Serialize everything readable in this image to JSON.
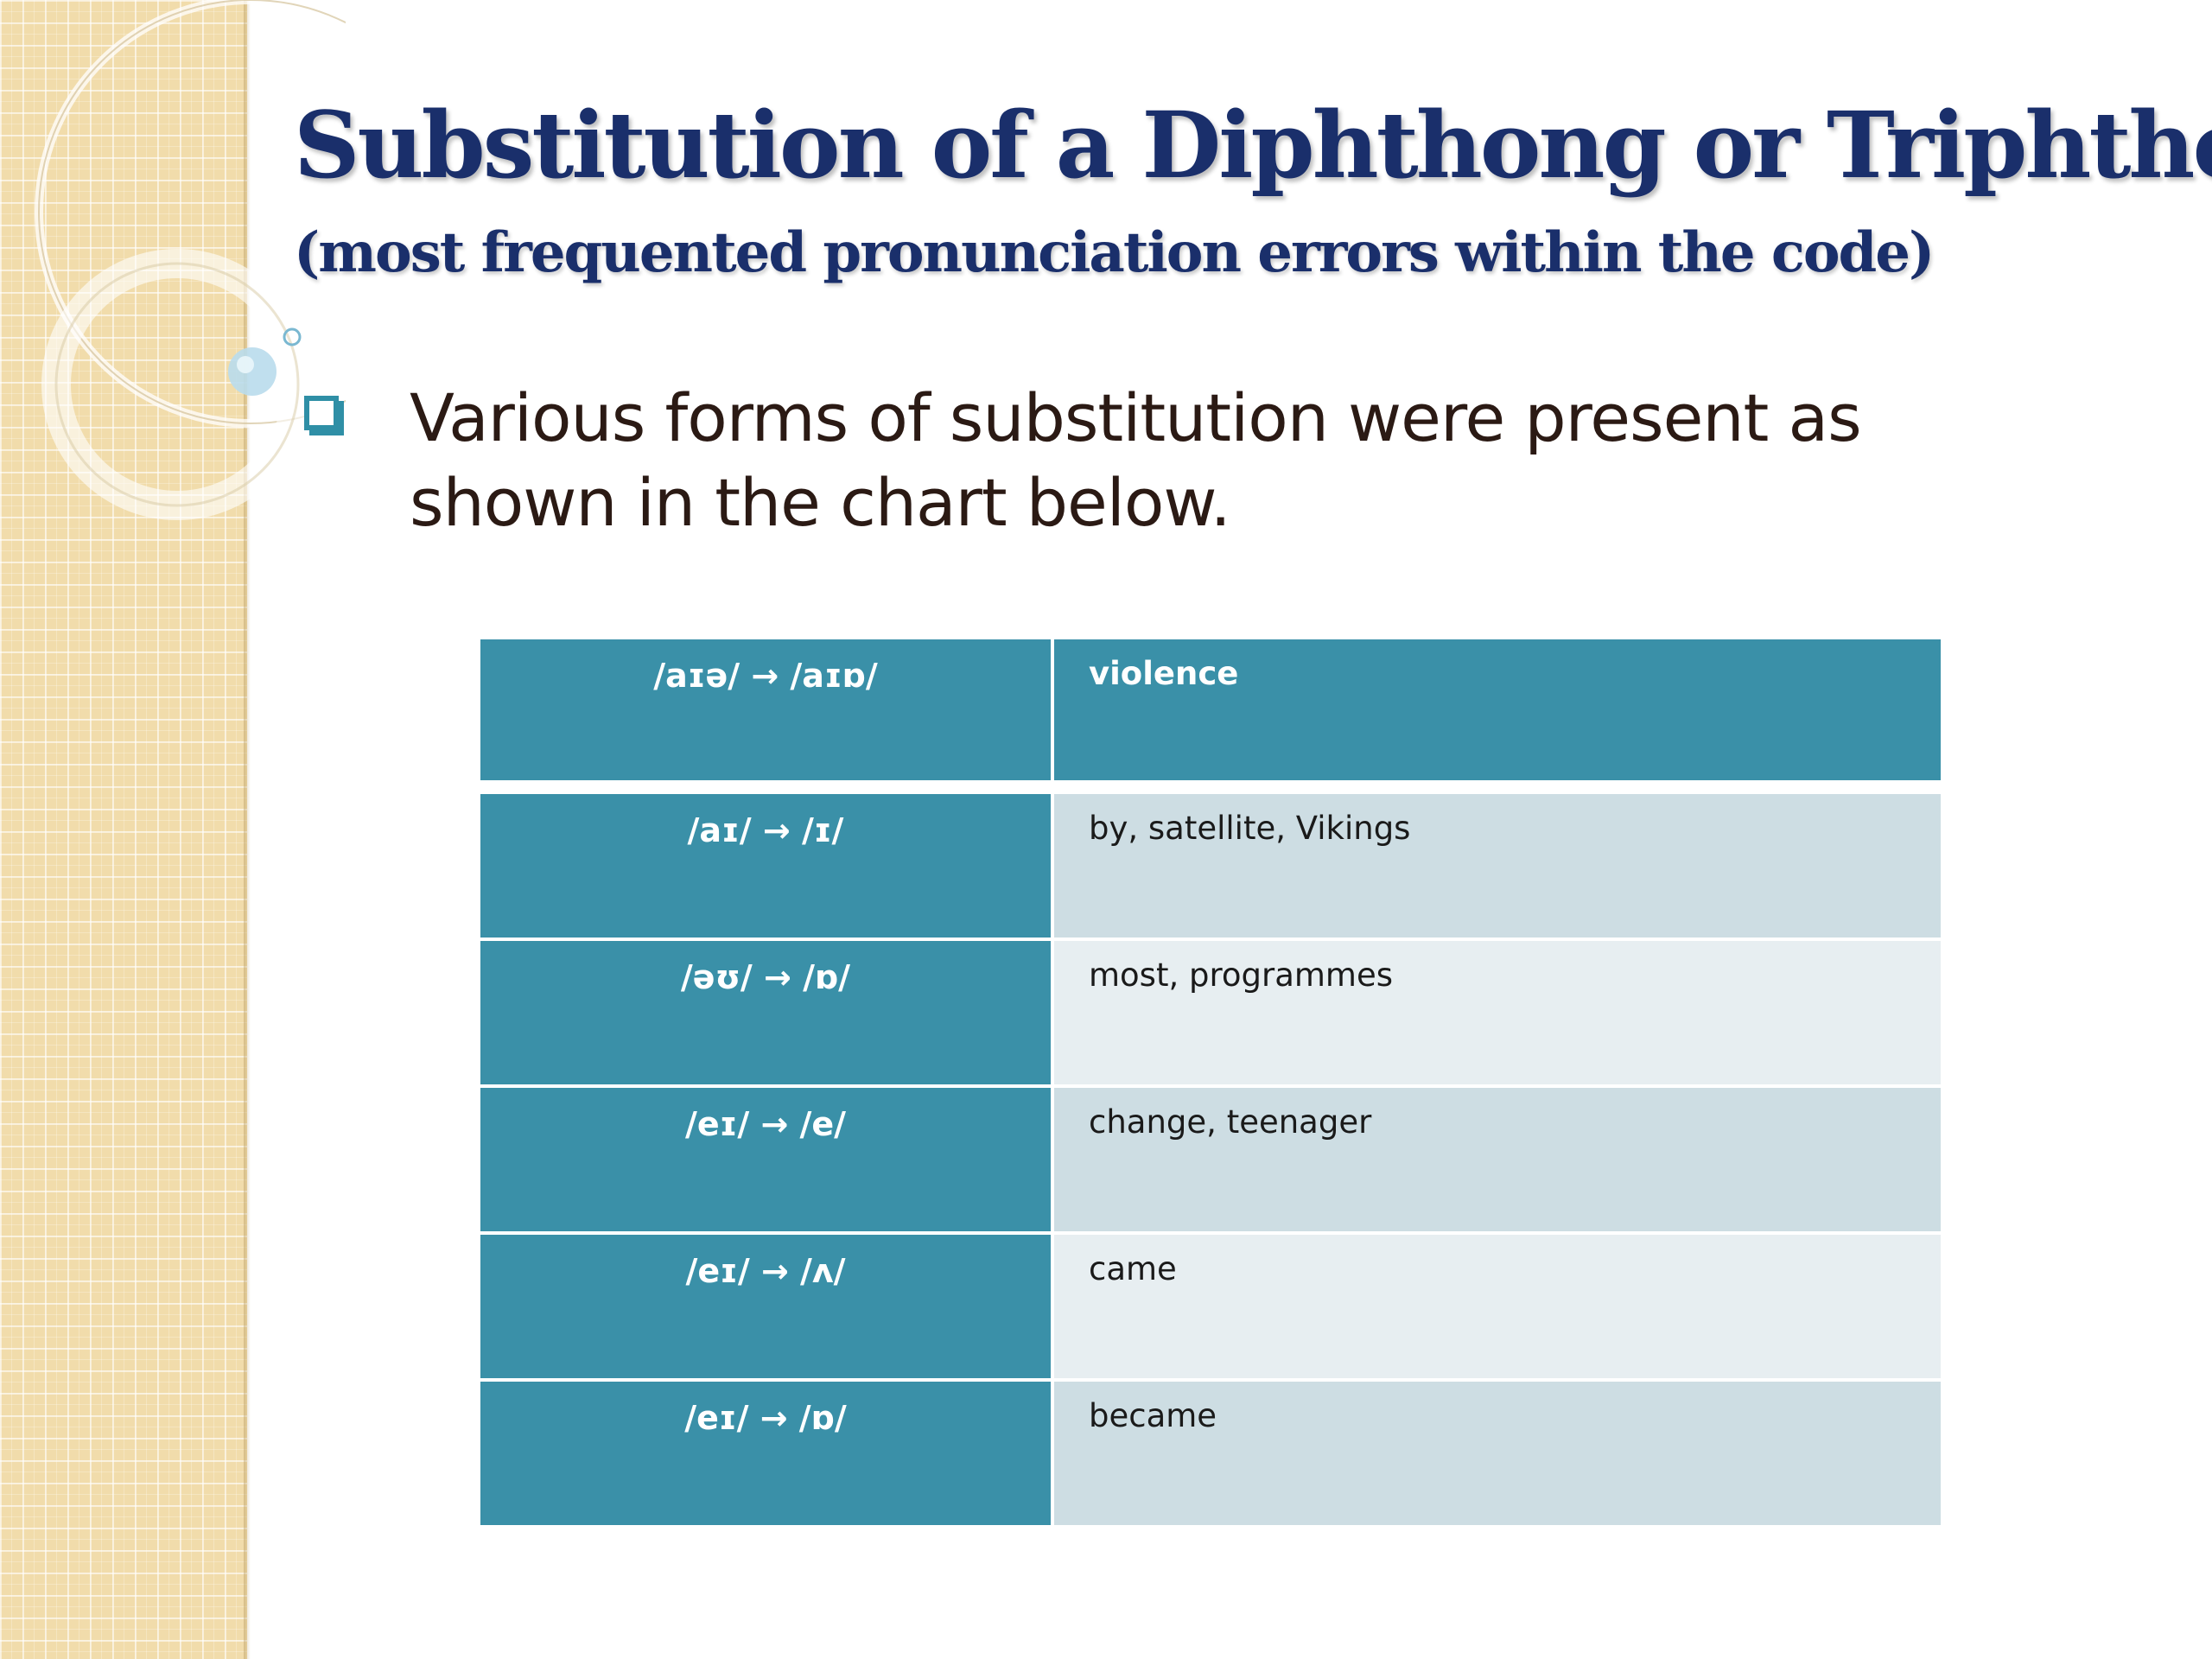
{
  "slide": {
    "title": "Substitution of a Diphthong or Triphthong",
    "subtitle": "(most frequented pronunciation errors within the code)",
    "bullet_text": "Various forms of substitution were present as shown in the chart below."
  },
  "table": {
    "rows": [
      {
        "sound": "/aɪə/ → /aɪɒ/",
        "examples": "violence"
      },
      {
        "sound": "/aɪ/ → /ɪ/",
        "examples": "by, satellite, Vikings"
      },
      {
        "sound": "/əʊ/ → /ɒ/",
        "examples": "most, programmes"
      },
      {
        "sound": "/eɪ/ → /e/",
        "examples": "change, teenager"
      },
      {
        "sound": "/eɪ/ → /ʌ/",
        "examples": "came"
      },
      {
        "sound": "/eɪ/ → /ɒ/",
        "examples": "became"
      }
    ]
  },
  "colors": {
    "title": "#1a2f6b",
    "table_accent": "#3a90a8",
    "row_alt_1": "#cddde3",
    "row_alt_2": "#e7eef1",
    "side_strip": "#f1dcab"
  }
}
